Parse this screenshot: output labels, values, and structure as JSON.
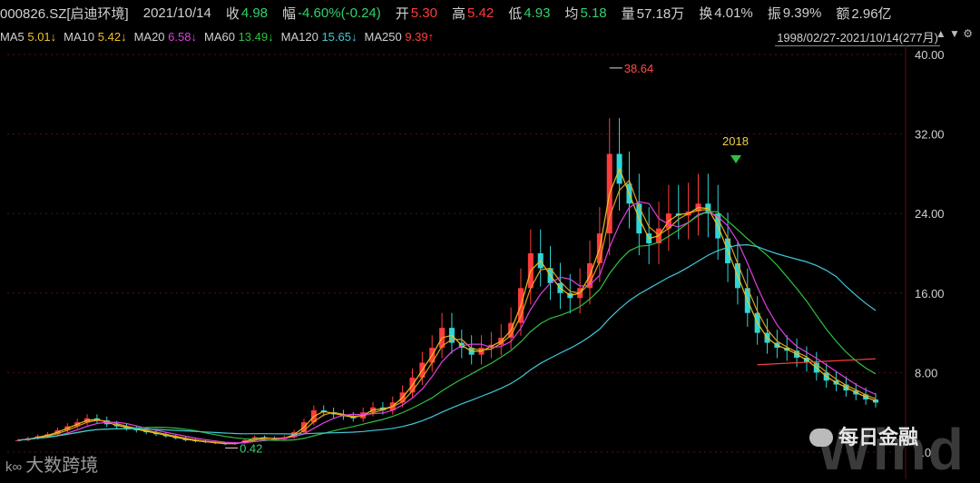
{
  "quote": {
    "code": "000826.SZ[启迪环境]",
    "date": "2021/10/14",
    "close_label": "收",
    "close": "4.98",
    "change_label": "幅",
    "change": "-4.60%(-0.24)",
    "open_label": "开",
    "open": "5.30",
    "high_label": "高",
    "high": "5.42",
    "low_label": "低",
    "low": "4.93",
    "avg_label": "均",
    "avg": "5.18",
    "vol_label": "量",
    "vol": "57.18万",
    "turnover_label": "换",
    "turnover": "4.01%",
    "amp_label": "振",
    "amp": "9.39%",
    "amount_label": "额",
    "amount": "2.96亿"
  },
  "ma_bar": {
    "items": [
      {
        "name": "MA5",
        "value": "5.01↓",
        "color": "#f0c020"
      },
      {
        "name": "MA10",
        "value": "5.42↓",
        "color": "#f0c020"
      },
      {
        "name": "MA20",
        "value": "6.58↓",
        "color": "#e040e0"
      },
      {
        "name": "MA60",
        "value": "13.49↓",
        "color": "#30c040"
      },
      {
        "name": "MA120",
        "value": "15.65↓",
        "color": "#40c8d8"
      },
      {
        "name": "MA250",
        "value": "9.39↑",
        "color": "#ff4040"
      }
    ],
    "range": "1998/02/27-2021/10/14(277月)",
    "controls": "▲ ▼ ⚙"
  },
  "colors": {
    "up": "#ff3b3b",
    "down": "#2fd6d6",
    "ma5": "#f0c020",
    "ma10": "#e0a020",
    "ma20": "#e040e0",
    "ma60": "#30c040",
    "ma120": "#40c8d8",
    "ma250": "#ff4040",
    "grid": "#5a1010",
    "bg": "#000000"
  },
  "chart_data": {
    "type": "candlestick",
    "title": "000826.SZ[启迪环境]",
    "period": "monthly",
    "ylim": [
      0,
      40
    ],
    "y_ticks": [
      "40.00",
      "32.00",
      "24.00",
      "16.00",
      "8.00",
      "0.00"
    ],
    "y_tick_values": [
      40,
      32,
      24,
      16,
      8,
      0
    ],
    "annotations": {
      "max_label": "38.64",
      "max_value": 38.64,
      "min_label": "0.42",
      "min_value": 0.42,
      "year_marker": "2018"
    },
    "close_series_approx": [
      1.2,
      1.4,
      1.6,
      1.8,
      2.2,
      2.6,
      3.0,
      3.4,
      3.2,
      2.8,
      2.6,
      2.4,
      2.2,
      2.0,
      1.8,
      1.6,
      1.4,
      1.2,
      1.1,
      1.0,
      0.9,
      0.8,
      0.9,
      1.2,
      1.5,
      1.4,
      1.3,
      1.5,
      2.0,
      3.0,
      4.2,
      4.0,
      3.8,
      3.6,
      3.4,
      4.0,
      4.5,
      4.2,
      5.0,
      6.0,
      7.5,
      9.0,
      10.5,
      12.5,
      11.0,
      10.5,
      9.8,
      10.5,
      10.8,
      11.5,
      13.0,
      16.5,
      20.0,
      18.5,
      17.0,
      16.0,
      15.5,
      16.5,
      19.0,
      22.0,
      30.0,
      27.0,
      25.0,
      22.0,
      21.0,
      22.5,
      24.0,
      23.8,
      24.2,
      25.0,
      24.0,
      21.5,
      19.0,
      16.5,
      14.0,
      12.0,
      11.0,
      10.5,
      10.2,
      9.5,
      9.0,
      8.0,
      7.2,
      6.8,
      6.2,
      5.8,
      5.3,
      4.98
    ],
    "ma_latest": {
      "MA5": 5.01,
      "MA10": 5.42,
      "MA20": 6.58,
      "MA60": 13.49,
      "MA120": 15.65,
      "MA250": 9.39
    }
  },
  "watermarks": {
    "source": "大数跨境",
    "source_logo": "k∞",
    "brand": "每日金融",
    "faint": "Wind"
  }
}
